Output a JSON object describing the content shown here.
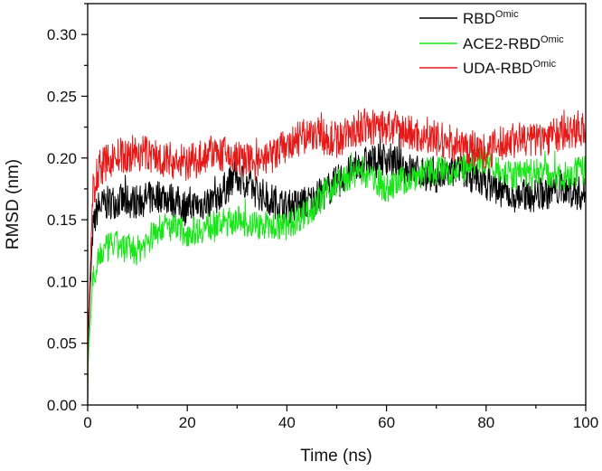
{
  "chart_data": {
    "type": "line",
    "title": "",
    "xlabel": "Time (ns)",
    "ylabel": "RMSD (nm)",
    "xlim": [
      0,
      100
    ],
    "ylim": [
      0,
      0.325
    ],
    "x_ticks": [
      "0",
      "20",
      "40",
      "60",
      "80",
      "100"
    ],
    "y_ticks": [
      "0.00",
      "0.05",
      "0.10",
      "0.15",
      "0.20",
      "0.25",
      "0.30"
    ],
    "grid": false,
    "legend_position": "top-right",
    "x": [
      0,
      1,
      2,
      5,
      10,
      15,
      20,
      25,
      30,
      35,
      40,
      45,
      50,
      55,
      60,
      65,
      70,
      75,
      80,
      85,
      90,
      95,
      100
    ],
    "series": [
      {
        "name": "RBD",
        "superscript": "Omic",
        "color": "#000000",
        "values": [
          0.04,
          0.14,
          0.16,
          0.165,
          0.165,
          0.17,
          0.16,
          0.165,
          0.185,
          0.17,
          0.16,
          0.165,
          0.18,
          0.195,
          0.2,
          0.19,
          0.185,
          0.19,
          0.18,
          0.17,
          0.17,
          0.175,
          0.17
        ]
      },
      {
        "name": "ACE2-RBD",
        "superscript": "Omic",
        "color": "#19e619",
        "values": [
          0.03,
          0.1,
          0.12,
          0.13,
          0.125,
          0.145,
          0.14,
          0.145,
          0.15,
          0.145,
          0.145,
          0.16,
          0.18,
          0.19,
          0.175,
          0.185,
          0.19,
          0.19,
          0.2,
          0.185,
          0.19,
          0.185,
          0.19
        ]
      },
      {
        "name": "UDA-RBD",
        "superscript": "Omic",
        "color": "#e61919",
        "values": [
          0.05,
          0.17,
          0.19,
          0.2,
          0.205,
          0.2,
          0.195,
          0.205,
          0.2,
          0.195,
          0.21,
          0.22,
          0.215,
          0.225,
          0.225,
          0.22,
          0.215,
          0.21,
          0.205,
          0.215,
          0.215,
          0.22,
          0.225
        ]
      }
    ]
  }
}
